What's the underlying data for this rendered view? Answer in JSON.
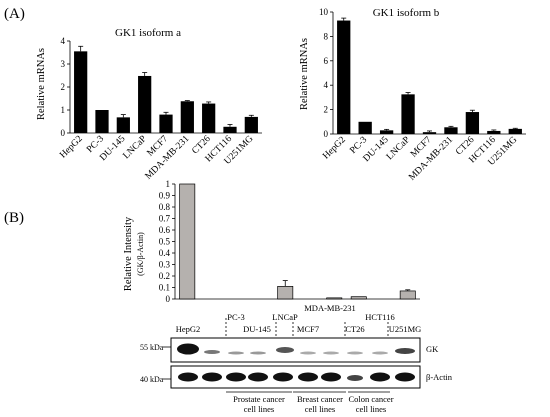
{
  "panels": {
    "a": "(A)",
    "b": "(B)"
  },
  "chart_data": [
    {
      "type": "bar",
      "title": "GK1 isoform a",
      "ylabel": "Relative mRNAs",
      "xlabel": "",
      "categories": [
        "HepG2",
        "PC-3",
        "DU-145",
        "LNCaP",
        "MCF7",
        "MDA-MB-231",
        "CT26",
        "HCT116",
        "U251MG"
      ],
      "values": [
        3.55,
        1.0,
        0.68,
        2.48,
        0.8,
        1.38,
        1.28,
        0.27,
        0.7
      ],
      "errors": [
        0.22,
        0.0,
        0.12,
        0.15,
        0.1,
        0.03,
        0.07,
        0.1,
        0.07
      ],
      "ylim": [
        0,
        4
      ],
      "yticks": [
        "0",
        "1",
        "2",
        "3",
        "4"
      ],
      "grid": false,
      "colors": {
        "bar": "#000000"
      }
    },
    {
      "type": "bar",
      "title": "GK1 isoform b",
      "ylabel": "Relative mRNAs",
      "xlabel": "",
      "categories": [
        "HepG2",
        "PC-3",
        "DU-145",
        "LNCaP",
        "MCF7",
        "MDA-MB-231",
        "CT26",
        "HCT116",
        "U251MG"
      ],
      "values": [
        9.3,
        1.0,
        0.3,
        3.25,
        0.15,
        0.55,
        1.8,
        0.25,
        0.42
      ],
      "errors": [
        0.2,
        0.0,
        0.08,
        0.15,
        0.1,
        0.08,
        0.15,
        0.08,
        0.05
      ],
      "ylim": [
        0,
        10
      ],
      "yticks": [
        "0",
        "2",
        "4",
        "6",
        "8",
        "10"
      ],
      "grid": false,
      "colors": {
        "bar": "#000000"
      }
    },
    {
      "type": "bar",
      "title": "",
      "ylabel": "Relative Intensity",
      "ylabel2": "(GK/β-Actin)",
      "categories": [
        "HepG2",
        "",
        "PC-3",
        "DU-145",
        "LNCaP",
        "MCF7",
        "MDA-MB-231",
        "CT26",
        "HCT116",
        "U251MG"
      ],
      "values": [
        1.0,
        0.0,
        0.0,
        0.0,
        0.11,
        0.0,
        0.01,
        0.02,
        0.0,
        0.07
      ],
      "errors": [
        0.0,
        0.0,
        0.0,
        0.0,
        0.05,
        0.0,
        0.0,
        0.0,
        0.0,
        0.01
      ],
      "ylim": [
        0,
        1
      ],
      "yticks": [
        "0",
        "0.1",
        "0.2",
        "0.3",
        "0.4",
        "0.5",
        "0.6",
        "0.7",
        "0.8",
        "0.9",
        "1"
      ],
      "grid": false,
      "colors": {
        "bar": "#b5b1ae"
      }
    }
  ],
  "blot": {
    "cell_labels": [
      "HepG2",
      "PC-3",
      "DU-145",
      "LNCaP",
      "MCF7",
      "MDA-MB-231",
      "CT26",
      "HCT116",
      "U251MG"
    ],
    "marker_gk": "55 kDa",
    "marker_actin": "40 kDa",
    "row_gk": "GK",
    "row_actin": "β-Actin",
    "groups": [
      {
        "line1": "Prostate cancer",
        "line2": "cell lines"
      },
      {
        "line1": "Breast cancer",
        "line2": "cell lines"
      },
      {
        "line1": "Colon cancer",
        "line2": "cell lines"
      }
    ]
  }
}
